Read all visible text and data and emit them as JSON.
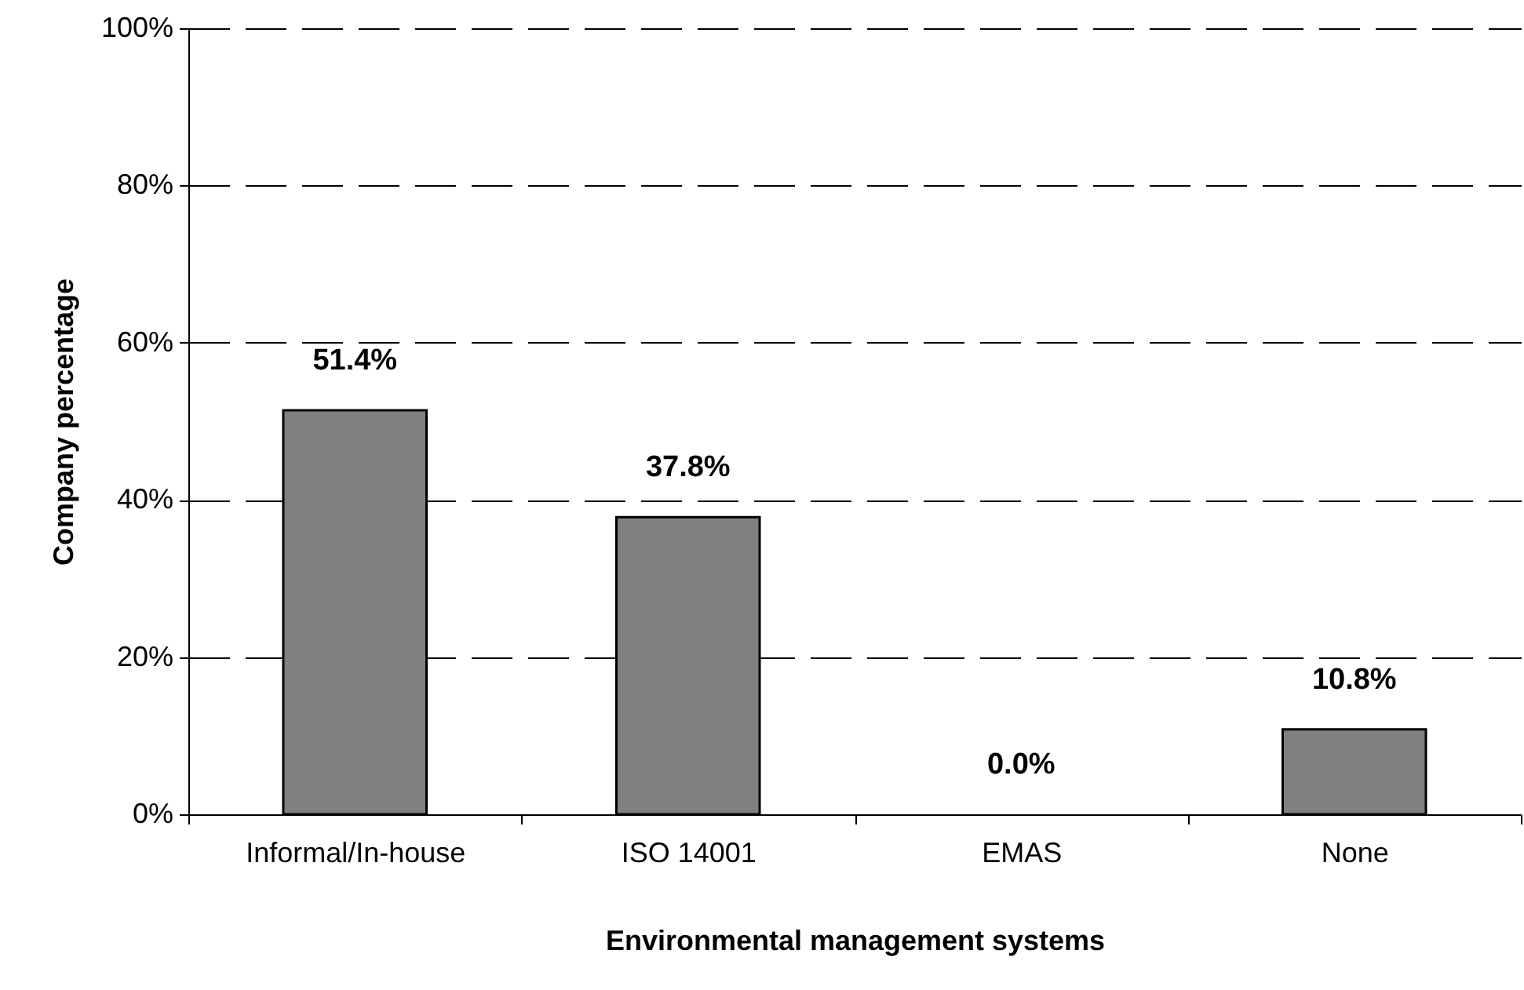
{
  "chart_data": {
    "type": "bar",
    "xlabel": "Environmental management systems",
    "ylabel": "Company percentage",
    "categories": [
      "Informal/In-house",
      "ISO 14001",
      "EMAS",
      "None"
    ],
    "values": [
      51.4,
      37.8,
      0.0,
      10.8
    ],
    "value_labels": [
      "51.4%",
      "37.8%",
      "0.0%",
      "10.8%"
    ],
    "color": "#808080",
    "ylim": [
      0,
      100
    ],
    "yticks": [
      {
        "value": 0,
        "label": "0%"
      },
      {
        "value": 20,
        "label": "20%"
      },
      {
        "value": 40,
        "label": "40%"
      },
      {
        "value": 60,
        "label": "60%"
      },
      {
        "value": 80,
        "label": "80%"
      },
      {
        "value": 100,
        "label": "100%"
      }
    ],
    "grid": "y"
  }
}
